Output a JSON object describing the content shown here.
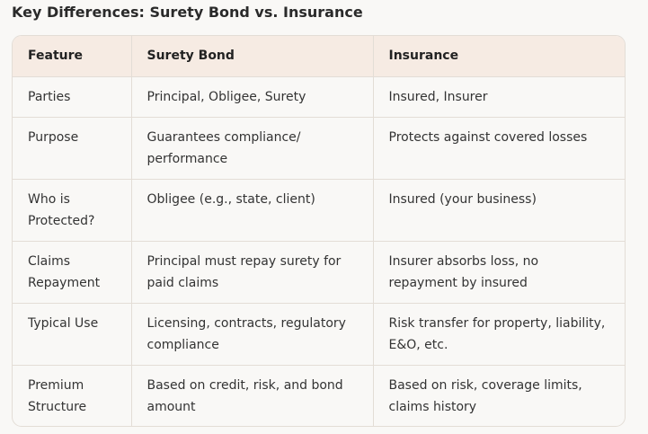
{
  "title": "Key Differences: Surety Bond vs. Insurance",
  "table": {
    "headers": [
      "Feature",
      "Surety Bond",
      "Insurance"
    ],
    "rows": [
      {
        "feature": "Parties",
        "surety": "Principal, Obligee, Surety",
        "insurance": "Insured, Insurer"
      },
      {
        "feature": "Purpose",
        "surety": "Guarantees compliance/ performance",
        "insurance": "Protects against covered losses"
      },
      {
        "feature": "Who is Protected?",
        "surety": "Obligee (e.g., state, client)",
        "insurance": "Insured (your business)"
      },
      {
        "feature": "Claims Repayment",
        "surety": "Principal must repay surety for paid claims",
        "insurance": "Insurer absorbs loss, no repayment by insured"
      },
      {
        "feature": "Typical Use",
        "surety": "Licensing, contracts, regulatory compliance",
        "insurance": "Risk transfer for property, liability, E&O, etc."
      },
      {
        "feature": "Premium Structure",
        "surety": "Based on credit, risk, and bond amount",
        "insurance": "Based on risk, coverage limits, claims history"
      }
    ]
  }
}
